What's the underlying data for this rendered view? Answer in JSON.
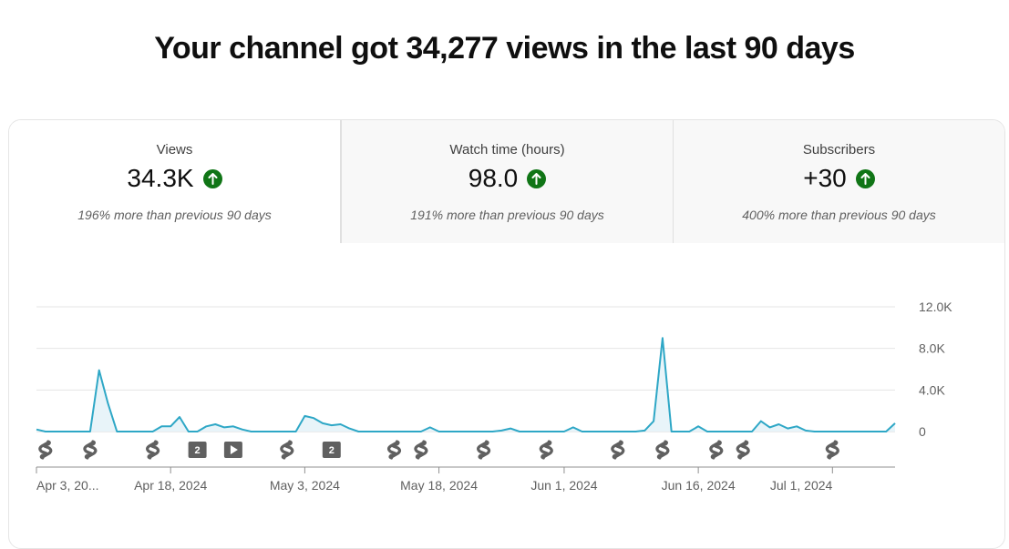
{
  "headline": "Your channel got 34,277 views in the last 90 days",
  "tabs": [
    {
      "label": "Views",
      "value": "34.3K",
      "trend": "up",
      "comparison": "196% more than previous 90 days",
      "active": true
    },
    {
      "label": "Watch time (hours)",
      "value": "98.0",
      "trend": "up",
      "comparison": "191% more than previous 90 days",
      "active": false
    },
    {
      "label": "Subscribers",
      "value": "+30",
      "trend": "up",
      "comparison": "400% more than previous 90 days",
      "active": false
    }
  ],
  "colors": {
    "line": "#2ea7c6",
    "area": "#e8f4f9",
    "trend_up": "#107516",
    "grid": "#e5e5e5"
  },
  "chart_data": {
    "type": "area",
    "title": "",
    "xlabel": "",
    "ylabel": "",
    "ylim": [
      0,
      12000
    ],
    "y_ticks": [
      "12.0K",
      "8.0K",
      "4.0K",
      "0"
    ],
    "y_tick_values": [
      12000,
      8000,
      4000,
      0
    ],
    "y_axis_side": "right",
    "grid": true,
    "x_start": "Apr 3, 2024",
    "x_ticks": [
      "Apr 3, 20...",
      "Apr 18, 2024",
      "May 3, 2024",
      "May 18, 2024",
      "Jun 1, 2024",
      "Jun 16, 2024",
      "Jul 1, 2024"
    ],
    "x_tick_dates": [
      "2024-04-03",
      "2024-04-18",
      "2024-05-03",
      "2024-05-18",
      "2024-06-01",
      "2024-06-16",
      "2024-07-01"
    ],
    "series": [
      {
        "values": [
          200,
          0,
          0,
          0,
          0,
          0,
          0,
          5900,
          2700,
          0,
          0,
          0,
          0,
          0,
          500,
          500,
          1400,
          0,
          0,
          500,
          700,
          400,
          500,
          200,
          0,
          0,
          0,
          0,
          0,
          0,
          1500,
          1300,
          800,
          600,
          700,
          300,
          0,
          0,
          0,
          0,
          0,
          0,
          0,
          0,
          400,
          0,
          0,
          0,
          0,
          0,
          0,
          0,
          100,
          300,
          0,
          0,
          0,
          0,
          0,
          0,
          400,
          0,
          0,
          0,
          0,
          0,
          0,
          0,
          100,
          1000,
          9000,
          0,
          0,
          0,
          500,
          0,
          0,
          0,
          0,
          0,
          0,
          1000,
          400,
          700,
          300,
          500,
          100,
          0,
          0,
          0,
          0,
          0,
          0,
          0,
          0,
          0,
          800
        ]
      }
    ],
    "content_markers": [
      {
        "type": "short",
        "date": "2024-04-04"
      },
      {
        "type": "short",
        "date": "2024-04-09"
      },
      {
        "type": "short",
        "date": "2024-04-16"
      },
      {
        "type": "count",
        "label": "2",
        "date": "2024-04-21"
      },
      {
        "type": "video",
        "date": "2024-04-25"
      },
      {
        "type": "short",
        "date": "2024-05-01"
      },
      {
        "type": "count",
        "label": "2",
        "date": "2024-05-06"
      },
      {
        "type": "short",
        "date": "2024-05-13"
      },
      {
        "type": "short",
        "date": "2024-05-16"
      },
      {
        "type": "short",
        "date": "2024-05-23"
      },
      {
        "type": "short",
        "date": "2024-05-30"
      },
      {
        "type": "short",
        "date": "2024-06-07"
      },
      {
        "type": "short",
        "date": "2024-06-12"
      },
      {
        "type": "short",
        "date": "2024-06-18"
      },
      {
        "type": "short",
        "date": "2024-06-21"
      },
      {
        "type": "short",
        "date": "2024-07-01"
      }
    ]
  }
}
